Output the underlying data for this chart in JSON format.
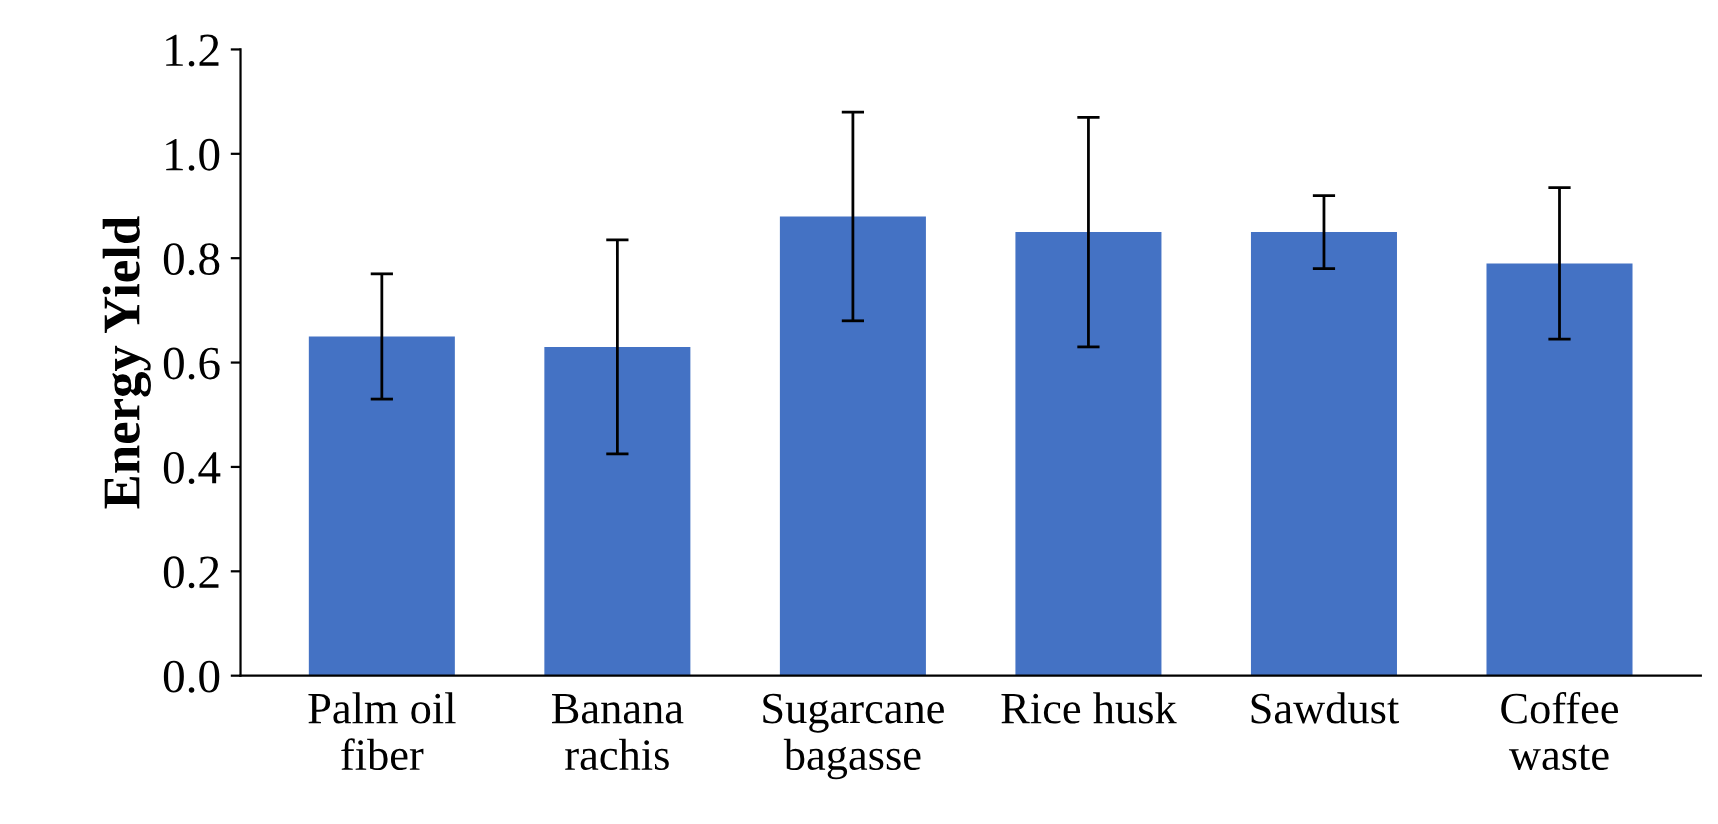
{
  "chart_data": {
    "type": "bar",
    "ylabel": "Energy Yield",
    "categories": [
      "Palm oil\nfiber",
      "Banana\nrachis",
      "Sugarcane\nbagasse",
      "Rice husk",
      "Sawdust",
      "Coffee\nwaste"
    ],
    "values": [
      0.65,
      0.63,
      0.88,
      0.85,
      0.85,
      0.79
    ],
    "errors": [
      0.12,
      0.205,
      0.2,
      0.22,
      0.07,
      0.145
    ],
    "color": "#4472c4",
    "ylim": [
      0,
      1.2
    ],
    "yticks": [
      {
        "value": 0,
        "label": "0.0"
      },
      {
        "value": 0.2,
        "label": "0.2"
      },
      {
        "value": 0.4,
        "label": "0.4"
      },
      {
        "value": 0.6,
        "label": "0.6"
      },
      {
        "value": 0.8,
        "label": "0.8"
      },
      {
        "value": 1.0,
        "label": "1.0"
      },
      {
        "value": 1.2,
        "label": "1.2"
      }
    ],
    "grid": false
  }
}
